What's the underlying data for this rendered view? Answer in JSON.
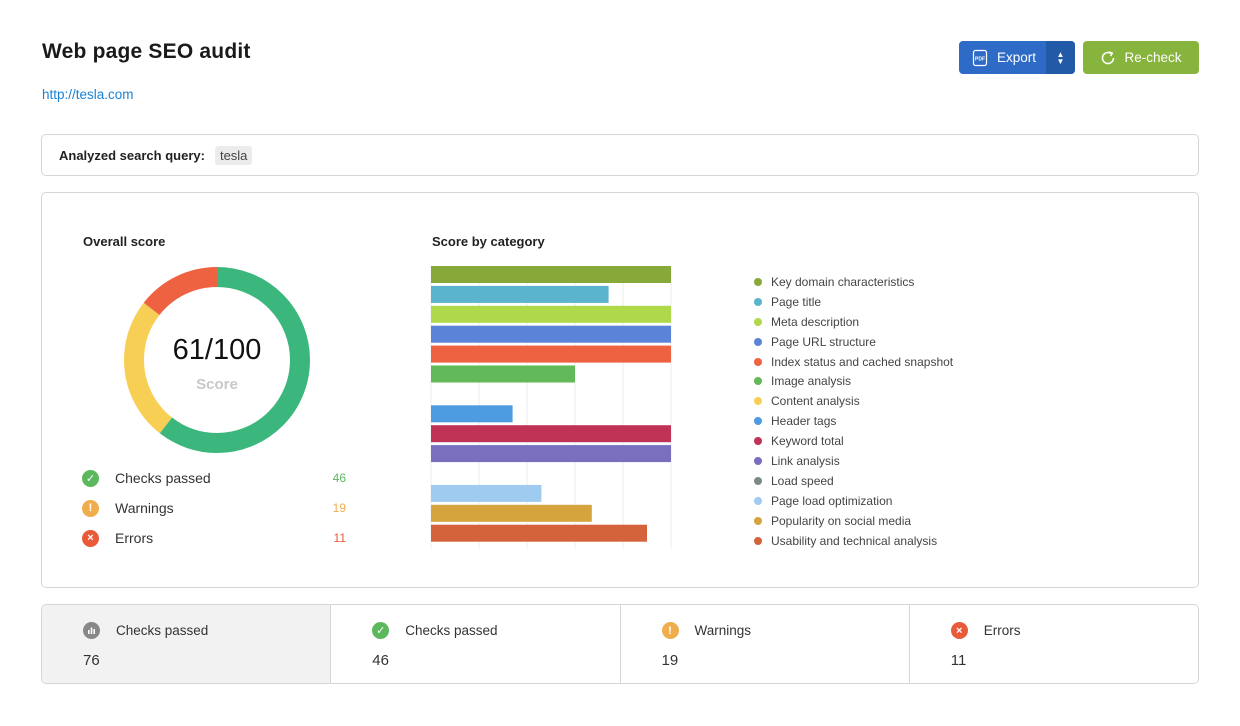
{
  "header": {
    "title": "Web page SEO audit",
    "url": "http://tesla.com",
    "export_label": "Export",
    "recheck_label": "Re-check"
  },
  "query": {
    "label": "Analyzed search query:",
    "value": "tesla"
  },
  "overall": {
    "title": "Overall score",
    "score_text": "61/100",
    "score_sub": "Score",
    "score": 61,
    "max": 100,
    "stats": [
      {
        "label": "Checks passed",
        "value": "46",
        "icon": "check-icon",
        "color": "#5cb85c"
      },
      {
        "label": "Warnings",
        "value": "19",
        "icon": "exclamation-icon",
        "color": "#f0ad4e"
      },
      {
        "label": "Errors",
        "value": "11",
        "icon": "x-icon",
        "color": "#e85a3a"
      }
    ],
    "donut_colors": {
      "passed": "#3bb77e",
      "warnings": "#f8cf55",
      "errors": "#ee6242"
    }
  },
  "category_chart": {
    "title": "Score by category"
  },
  "chart_data": {
    "type": "bar",
    "orientation": "horizontal",
    "xlim": [
      0,
      100
    ],
    "x_ticks": [
      "0%",
      "20%",
      "40%",
      "60%",
      "80%",
      "100%"
    ],
    "categories": [
      "Key domain characteristics",
      "Page title",
      "Meta description",
      "Page URL structure",
      "Index status and cached snapshot",
      "Image analysis",
      "Content analysis",
      "Header tags",
      "Keyword total",
      "Link analysis",
      "Load speed",
      "Page load optimization",
      "Popularity on social media",
      "Usability and technical analysis"
    ],
    "values": [
      100,
      74,
      100,
      100,
      100,
      60,
      0,
      34,
      100,
      100,
      0,
      46,
      67,
      90
    ],
    "colors": [
      "#86a93a",
      "#5ab4cb",
      "#afd84a",
      "#5b84d8",
      "#ee6242",
      "#61b95a",
      "#f8cf55",
      "#4d9be0",
      "#be3356",
      "#7a6fbf",
      "#7c8a87",
      "#9fcbf1",
      "#d5a43c",
      "#d4633c"
    ],
    "legend_position": "right",
    "grid": true
  },
  "summary": [
    {
      "label": "Checks passed",
      "value": "76",
      "icon": "bar-chart-icon",
      "color": "#888888"
    },
    {
      "label": "Checks passed",
      "value": "46",
      "icon": "check-icon",
      "color": "#5cb85c"
    },
    {
      "label": "Warnings",
      "value": "19",
      "icon": "exclamation-icon",
      "color": "#f0ad4e"
    },
    {
      "label": "Errors",
      "value": "11",
      "icon": "x-icon",
      "color": "#e85a3a"
    }
  ]
}
